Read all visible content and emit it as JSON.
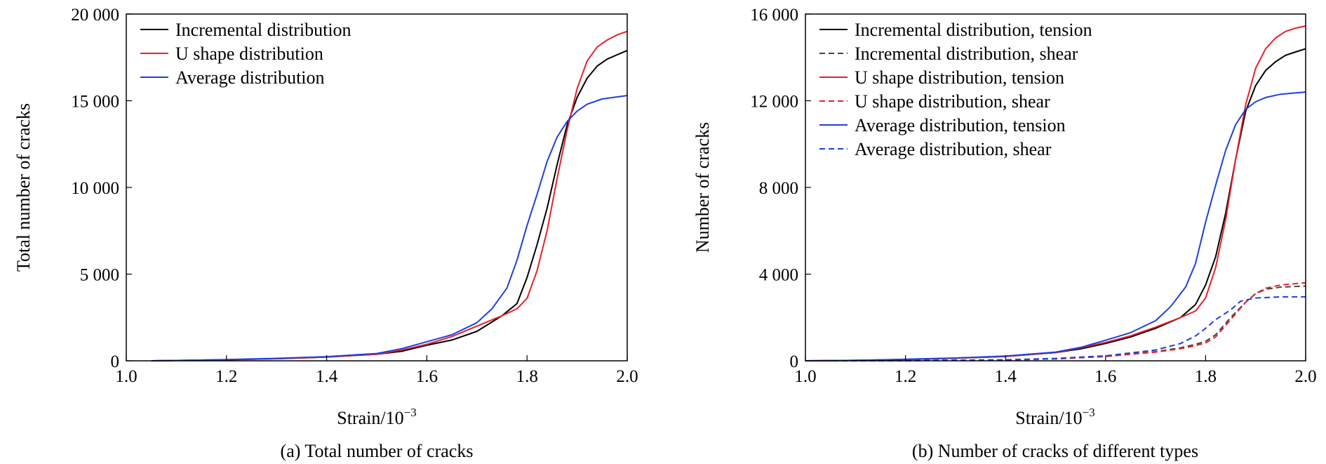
{
  "chart_data": [
    {
      "type": "line",
      "caption": "(a) Total number of cracks",
      "xlabel_main": "Strain/10",
      "xlabel_sup": "−3",
      "ylabel": "Total number of cracks",
      "xlim": [
        1.0,
        2.0
      ],
      "ylim": [
        0,
        20000
      ],
      "x_ticks": [
        1.0,
        1.2,
        1.4,
        1.6,
        1.8,
        2.0
      ],
      "x_tick_labels": [
        "1.0",
        "1.2",
        "1.4",
        "1.6",
        "1.8",
        "2.0"
      ],
      "y_ticks": [
        0,
        5000,
        10000,
        15000,
        20000
      ],
      "y_tick_labels": [
        "0",
        "5 000",
        "10 000",
        "15 000",
        "20 000"
      ],
      "legend_position": "top-left",
      "series": [
        {
          "name": "Incremental distribution",
          "color": "#000000",
          "dash": "solid",
          "x": [
            1.05,
            1.1,
            1.2,
            1.3,
            1.4,
            1.5,
            1.55,
            1.6,
            1.65,
            1.7,
            1.75,
            1.78,
            1.8,
            1.82,
            1.84,
            1.86,
            1.88,
            1.9,
            1.92,
            1.94,
            1.96,
            1.98,
            2.0
          ],
          "y": [
            0,
            20,
            60,
            120,
            220,
            380,
            550,
            900,
            1200,
            1700,
            2600,
            3300,
            4800,
            6700,
            8800,
            11300,
            13600,
            15200,
            16300,
            17000,
            17400,
            17650,
            17900
          ]
        },
        {
          "name": "U shape distribution",
          "color": "#e8202a",
          "dash": "solid",
          "x": [
            1.05,
            1.1,
            1.2,
            1.3,
            1.4,
            1.5,
            1.55,
            1.6,
            1.65,
            1.7,
            1.75,
            1.78,
            1.8,
            1.82,
            1.84,
            1.86,
            1.88,
            1.9,
            1.92,
            1.94,
            1.96,
            1.98,
            2.0
          ],
          "y": [
            0,
            20,
            60,
            120,
            220,
            380,
            620,
            950,
            1400,
            2000,
            2600,
            3000,
            3600,
            5200,
            7500,
            10500,
            13300,
            15700,
            17300,
            18100,
            18500,
            18800,
            19000
          ]
        },
        {
          "name": "Average distribution",
          "color": "#1f3fe0",
          "dash": "solid",
          "x": [
            1.05,
            1.1,
            1.2,
            1.3,
            1.4,
            1.5,
            1.55,
            1.6,
            1.65,
            1.7,
            1.73,
            1.76,
            1.78,
            1.8,
            1.82,
            1.84,
            1.86,
            1.88,
            1.9,
            1.92,
            1.95,
            2.0
          ],
          "y": [
            0,
            20,
            70,
            140,
            240,
            420,
            700,
            1100,
            1500,
            2200,
            3000,
            4200,
            5800,
            7800,
            9600,
            11500,
            12900,
            13800,
            14400,
            14800,
            15100,
            15300
          ]
        }
      ]
    },
    {
      "type": "line",
      "caption": "(b) Number of cracks of different types",
      "xlabel_main": "Strain/10",
      "xlabel_sup": "−3",
      "ylabel": "Number of cracks",
      "xlim": [
        1.0,
        2.0
      ],
      "ylim": [
        0,
        16000
      ],
      "x_ticks": [
        1.0,
        1.2,
        1.4,
        1.6,
        1.8,
        2.0
      ],
      "x_tick_labels": [
        "1.0",
        "1.2",
        "1.4",
        "1.6",
        "1.8",
        "2.0"
      ],
      "y_ticks": [
        0,
        4000,
        8000,
        12000,
        16000
      ],
      "y_tick_labels": [
        "0",
        "4 000",
        "8 000",
        "12 000",
        "16 000"
      ],
      "legend_position": "top-left",
      "series": [
        {
          "name": "Incremental distribution, tension",
          "color": "#000000",
          "dash": "solid",
          "x": [
            1.0,
            1.1,
            1.2,
            1.3,
            1.4,
            1.5,
            1.55,
            1.6,
            1.65,
            1.7,
            1.75,
            1.78,
            1.8,
            1.82,
            1.84,
            1.86,
            1.88,
            1.9,
            1.92,
            1.94,
            1.96,
            1.98,
            2.0
          ],
          "y": [
            0,
            20,
            60,
            120,
            200,
            380,
            550,
            800,
            1100,
            1500,
            2000,
            2600,
            3500,
            4800,
            6800,
            9300,
            11500,
            12700,
            13400,
            13800,
            14100,
            14250,
            14400
          ]
        },
        {
          "name": "Incremental distribution, shear",
          "color": "#444444",
          "dash": "dashed",
          "x": [
            1.0,
            1.2,
            1.4,
            1.5,
            1.6,
            1.7,
            1.75,
            1.78,
            1.8,
            1.82,
            1.85,
            1.88,
            1.9,
            1.92,
            1.95,
            2.0
          ],
          "y": [
            0,
            10,
            40,
            90,
            200,
            420,
            600,
            760,
            900,
            1200,
            2000,
            2700,
            3100,
            3300,
            3400,
            3450
          ]
        },
        {
          "name": "U shape distribution, tension",
          "color": "#e8202a",
          "dash": "solid",
          "x": [
            1.0,
            1.1,
            1.2,
            1.3,
            1.4,
            1.5,
            1.55,
            1.6,
            1.65,
            1.7,
            1.75,
            1.78,
            1.8,
            1.82,
            1.84,
            1.86,
            1.88,
            1.9,
            1.92,
            1.94,
            1.96,
            1.98,
            2.0
          ],
          "y": [
            0,
            20,
            60,
            120,
            200,
            380,
            600,
            850,
            1150,
            1550,
            2000,
            2300,
            2900,
            4300,
            6500,
            9300,
            11800,
            13500,
            14400,
            14900,
            15200,
            15350,
            15450
          ]
        },
        {
          "name": "U shape distribution, shear",
          "color": "#e8202a",
          "dash": "dashed",
          "x": [
            1.0,
            1.2,
            1.4,
            1.5,
            1.6,
            1.7,
            1.75,
            1.78,
            1.8,
            1.82,
            1.85,
            1.88,
            1.9,
            1.92,
            1.95,
            2.0
          ],
          "y": [
            0,
            10,
            40,
            90,
            200,
            400,
            560,
            700,
            820,
            1100,
            1900,
            2700,
            3100,
            3350,
            3500,
            3600
          ]
        },
        {
          "name": "Average distribution, tension",
          "color": "#1f3fe0",
          "dash": "solid",
          "x": [
            1.0,
            1.1,
            1.2,
            1.3,
            1.4,
            1.5,
            1.55,
            1.6,
            1.65,
            1.7,
            1.73,
            1.76,
            1.78,
            1.8,
            1.82,
            1.84,
            1.86,
            1.88,
            1.9,
            1.92,
            1.95,
            2.0
          ],
          "y": [
            0,
            20,
            70,
            130,
            220,
            400,
            620,
            950,
            1300,
            1850,
            2500,
            3400,
            4500,
            6400,
            8100,
            9700,
            10900,
            11600,
            11950,
            12150,
            12300,
            12400
          ]
        },
        {
          "name": "Average distribution, shear",
          "color": "#1f3fe0",
          "dash": "dashed",
          "x": [
            1.0,
            1.2,
            1.4,
            1.5,
            1.6,
            1.7,
            1.75,
            1.78,
            1.8,
            1.82,
            1.85,
            1.87,
            1.9,
            1.95,
            2.0
          ],
          "y": [
            0,
            10,
            50,
            110,
            230,
            500,
            800,
            1150,
            1500,
            1900,
            2350,
            2750,
            2900,
            2950,
            2950
          ]
        }
      ]
    }
  ]
}
